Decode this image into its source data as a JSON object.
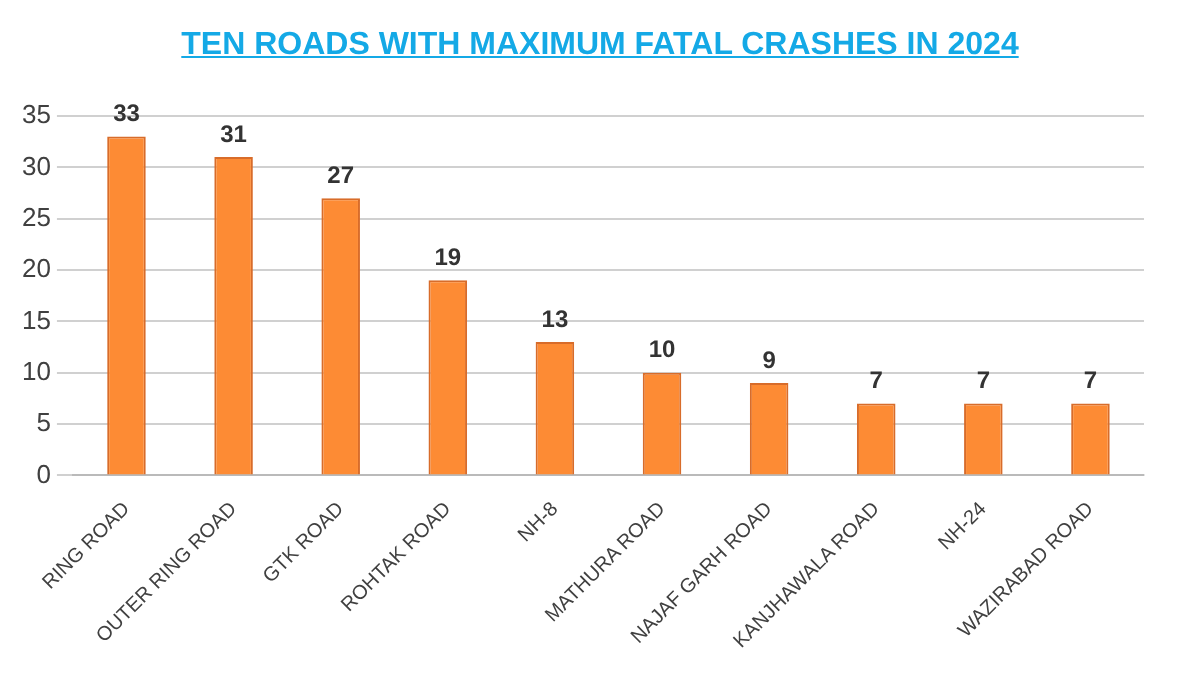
{
  "chart_data": {
    "type": "bar",
    "title": "TEN ROADS WITH MAXIMUM FATAL CRASHES IN 2024",
    "categories": [
      "RING ROAD",
      "OUTER RING ROAD",
      "GTK ROAD",
      "ROHTAK ROAD",
      "NH-8",
      "MATHURA ROAD",
      "NAJAF GARH ROAD",
      "KANJHAWALA ROAD",
      "NH-24",
      "WAZIRABAD ROAD"
    ],
    "values": [
      33,
      31,
      27,
      19,
      13,
      10,
      9,
      7,
      7,
      7
    ],
    "color": "#fd8b34",
    "ylim": [
      0,
      35
    ],
    "yticks": [
      0,
      5,
      10,
      15,
      20,
      25,
      30,
      35
    ],
    "grid": "y",
    "data_labels": true
  }
}
